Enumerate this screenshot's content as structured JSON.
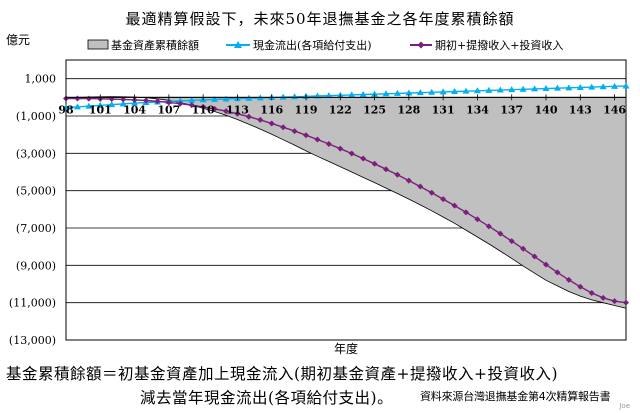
{
  "title": "最適精算假設下，未來50年退撫基金之各年度累積餘額",
  "footnote": {
    "formula_line1": "基金累積餘額＝初基金資產加上現金流入(期初基金資產+提撥收入+投資收入)",
    "formula_line2": "減去當年現金流出(各項給付支出)。",
    "source": "資料來源台灣退撫基金第4次精算報告書",
    "author": "Joe"
  },
  "colors": {
    "area": "#c0c0c0",
    "cashout": "#00b0f0",
    "cashin": "#7a1f7a"
  },
  "chart_data": {
    "type": "line",
    "title": "最適精算假設下，未來50年退撫基金之各年度累積餘額",
    "xlabel": "年度",
    "ylabel": "億元",
    "x_tick_labels": [
      "98",
      "101",
      "104",
      "107",
      "110",
      "113",
      "116",
      "119",
      "122",
      "125",
      "128",
      "131",
      "134",
      "137",
      "140",
      "143",
      "146"
    ],
    "y_tick_labels": [
      "1,000",
      "(1,000)",
      "(3,000)",
      "(5,000)",
      "(7,000)",
      "(9,000)",
      "(11,000)",
      "(13,000)"
    ],
    "ylim": [
      -13000,
      2000
    ],
    "xlim": [
      98,
      147
    ],
    "grid": true,
    "legend_position": "top",
    "series": [
      {
        "name": "基金資產累積餘額",
        "kind": "area",
        "x": [
          98,
          99,
          100,
          101,
          102,
          103,
          104,
          105,
          106,
          107,
          108,
          109,
          110,
          111,
          112,
          113,
          114,
          115,
          116,
          117,
          118,
          119,
          120,
          121,
          122,
          123,
          124,
          125,
          126,
          127,
          128,
          129,
          130,
          131,
          132,
          133,
          134,
          135,
          136,
          137,
          138,
          139,
          140,
          141,
          142,
          143,
          144,
          145,
          146,
          147
        ],
        "values": [
          -20,
          0,
          20,
          30,
          35,
          30,
          20,
          -20,
          -80,
          -160,
          -280,
          -420,
          -580,
          -760,
          -960,
          -1190,
          -1440,
          -1700,
          -1980,
          -2270,
          -2560,
          -2870,
          -3160,
          -3440,
          -3720,
          -4000,
          -4290,
          -4570,
          -4860,
          -5150,
          -5450,
          -5760,
          -6080,
          -6410,
          -6750,
          -7110,
          -7480,
          -7850,
          -8240,
          -8630,
          -9030,
          -9420,
          -9800,
          -10100,
          -10400,
          -10650,
          -10850,
          -11000,
          -11150,
          -11300
        ]
      },
      {
        "name": "現金流出(各項給付支出)",
        "kind": "line",
        "marker": "triangle",
        "x": [
          98,
          99,
          100,
          101,
          102,
          103,
          104,
          105,
          106,
          107,
          108,
          109,
          110,
          111,
          112,
          113,
          114,
          115,
          116,
          117,
          118,
          119,
          120,
          121,
          122,
          123,
          124,
          125,
          126,
          127,
          128,
          129,
          130,
          131,
          132,
          133,
          134,
          135,
          136,
          137,
          138,
          139,
          140,
          141,
          142,
          143,
          144,
          145,
          146,
          147
        ],
        "values": [
          -550,
          -510,
          -470,
          -430,
          -390,
          -350,
          -310,
          -280,
          -250,
          -220,
          -190,
          -160,
          -130,
          -110,
          -90,
          -70,
          -50,
          -30,
          -10,
          10,
          30,
          50,
          70,
          90,
          110,
          130,
          150,
          170,
          190,
          210,
          230,
          250,
          270,
          290,
          310,
          330,
          350,
          370,
          390,
          410,
          430,
          450,
          470,
          490,
          510,
          530,
          550,
          570,
          590,
          610
        ]
      },
      {
        "name": "期初+提撥收入+投資收入",
        "kind": "line",
        "marker": "diamond",
        "x": [
          98,
          99,
          100,
          101,
          102,
          103,
          104,
          105,
          106,
          107,
          108,
          109,
          110,
          111,
          112,
          113,
          114,
          115,
          116,
          117,
          118,
          119,
          120,
          121,
          122,
          123,
          124,
          125,
          126,
          127,
          128,
          129,
          130,
          131,
          132,
          133,
          134,
          135,
          136,
          137,
          138,
          139,
          140,
          141,
          142,
          143,
          144,
          145,
          146,
          147
        ],
        "values": [
          -60,
          -60,
          -70,
          -80,
          -90,
          -110,
          -140,
          -170,
          -210,
          -270,
          -340,
          -420,
          -510,
          -620,
          -740,
          -880,
          -1040,
          -1210,
          -1400,
          -1600,
          -1810,
          -2030,
          -2260,
          -2500,
          -2750,
          -3010,
          -3280,
          -3560,
          -3850,
          -4150,
          -4460,
          -4780,
          -5110,
          -5450,
          -5800,
          -6160,
          -6530,
          -6910,
          -7300,
          -7700,
          -8110,
          -8530,
          -8960,
          -9380,
          -9780,
          -10150,
          -10480,
          -10740,
          -10920,
          -11000
        ]
      }
    ]
  }
}
